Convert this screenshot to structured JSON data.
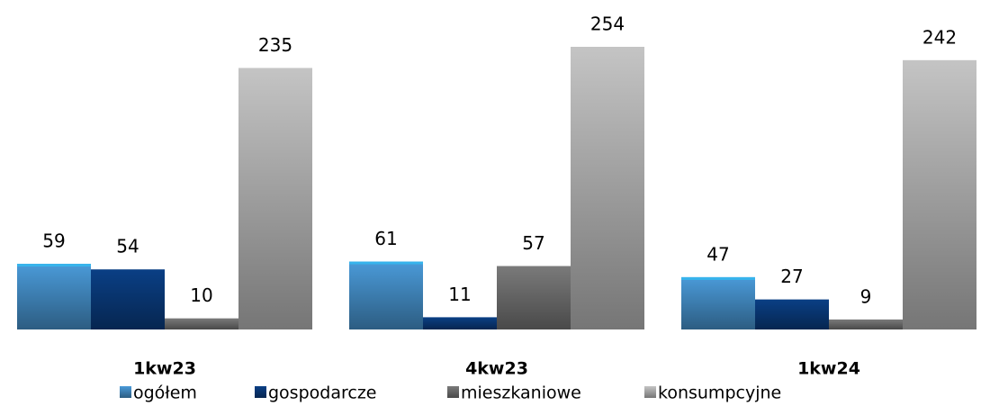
{
  "chart_data": {
    "type": "bar",
    "categories": [
      "1kw23",
      "4kw23",
      "1kw24"
    ],
    "series": [
      {
        "name": "ogółem",
        "color": "#4a9ad8",
        "values": [
          59,
          61,
          47
        ]
      },
      {
        "name": "gospodarcze",
        "color": "#0a3f85",
        "values": [
          54,
          11,
          27
        ]
      },
      {
        "name": "mieszkaniowe",
        "color": "#7a7a7a",
        "values": [
          10,
          57,
          9
        ]
      },
      {
        "name": "konsumpcyjne",
        "color": "#c4c4c4",
        "values": [
          235,
          254,
          242
        ]
      }
    ],
    "legend": "bottom"
  }
}
